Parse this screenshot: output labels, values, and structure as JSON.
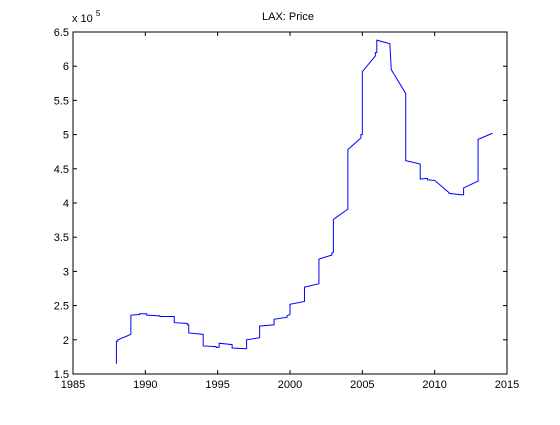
{
  "chart_data": {
    "type": "line",
    "title": "LAX: Price",
    "xlabel": "",
    "ylabel": "",
    "y_multiplier_label": "x 10",
    "y_multiplier_exponent": "5",
    "xlim": [
      1985,
      2015
    ],
    "ylim": [
      1.5,
      6.5
    ],
    "xticks": [
      1985,
      1990,
      1995,
      2000,
      2005,
      2010,
      2015
    ],
    "yticks": [
      1.5,
      2,
      2.5,
      3,
      3.5,
      4,
      4.5,
      5,
      5.5,
      6,
      6.5
    ],
    "ytick_labels": [
      "1.5",
      "2",
      "2.5",
      "3",
      "3.5",
      "4",
      "4.5",
      "5",
      "5.5",
      "6",
      "6.5"
    ],
    "grid": false,
    "line_color": "#0000ff",
    "series": [
      {
        "x": [
          1988.0,
          1988.0,
          1988.1,
          1988.1,
          1989.0,
          1989.0,
          1989.6,
          1989.6,
          1990.1,
          1990.1,
          1991.0,
          1991.0,
          1992.0,
          1992.0,
          1992.9,
          1992.9,
          1993.0,
          1993.0,
          1994.0,
          1994.0,
          1994.9,
          1994.9,
          1995.1,
          1995.1,
          1996.0,
          1996.0,
          1997.0,
          1997.0,
          1997.9,
          1997.9,
          1998.9,
          1998.9,
          1999.8,
          1999.8,
          2000.0,
          2000.0,
          2001.0,
          2001.0,
          2002.0,
          2002.0,
          2002.9,
          2002.9,
          2003.0,
          2003.0,
          2004.0,
          2004.0,
          2004.9,
          2004.9,
          2005.0,
          2005.0,
          2005.9,
          2005.9,
          2006.0,
          2006.0,
          2006.9,
          2006.9,
          2007.0,
          2008.0,
          2008.0,
          2009.0,
          2009.0,
          2009.5,
          2009.5,
          2010.0,
          2011.0,
          2011.0,
          2011.8,
          2011.8,
          2012.0,
          2012.0,
          2013.0,
          2013.0,
          2014.0
        ],
        "y": [
          1.65,
          1.98,
          1.98,
          2.0,
          2.08,
          2.36,
          2.37,
          2.38,
          2.38,
          2.36,
          2.35,
          2.34,
          2.34,
          2.25,
          2.24,
          2.22,
          2.22,
          2.1,
          2.08,
          1.91,
          1.9,
          1.89,
          1.89,
          1.95,
          1.93,
          1.88,
          1.87,
          2.0,
          2.03,
          2.2,
          2.22,
          2.3,
          2.33,
          2.35,
          2.37,
          2.52,
          2.56,
          2.77,
          2.82,
          3.18,
          3.24,
          3.27,
          3.28,
          3.76,
          3.91,
          4.78,
          4.95,
          5.0,
          5.0,
          5.92,
          6.15,
          6.2,
          6.2,
          6.38,
          6.33,
          6.33,
          5.95,
          5.6,
          4.62,
          4.57,
          4.35,
          4.36,
          4.34,
          4.33,
          4.15,
          4.14,
          4.12,
          4.12,
          4.12,
          4.22,
          4.32,
          4.93,
          5.02
        ]
      }
    ]
  }
}
